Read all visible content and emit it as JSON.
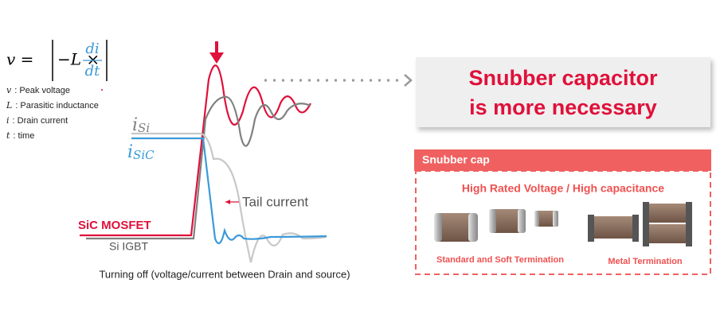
{
  "formula": {
    "lhs": "v =",
    "term": "−L ×",
    "numerator": "di",
    "denominator": "dt"
  },
  "definitions": [
    {
      "symbol": "v",
      "text": ": Peak voltage"
    },
    {
      "symbol": "L",
      "text": ": Parasitic inductance"
    },
    {
      "symbol": "i",
      "text": ": Drain current"
    },
    {
      "symbol": "t",
      "text": ": time"
    }
  ],
  "waveform_labels": {
    "i_si": {
      "symbol": "i",
      "subscript": "Si"
    },
    "i_sic": {
      "symbol": "i",
      "subscript": "SiC"
    },
    "tail_current": "Tail current",
    "sic_mosfet": "SiC MOSFET",
    "si_igbt": "Si IGBT"
  },
  "caption": "Turning off (voltage/current between Drain and source)",
  "callout": {
    "lines": [
      "Snubber capacitor",
      "is more necessary"
    ]
  },
  "snubber_panel": {
    "header": "Snubber cap",
    "subtitle": "High Rated Voltage / High capacitance",
    "labels": [
      "Standard and Soft Termination",
      "Metal Termination"
    ]
  }
}
